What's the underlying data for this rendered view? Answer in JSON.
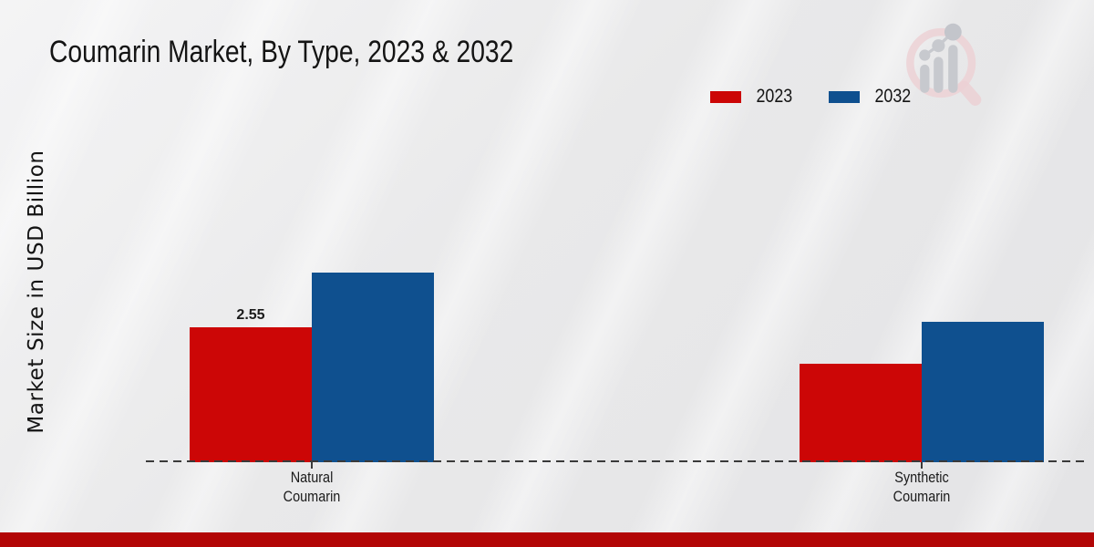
{
  "page": {
    "background_color": "#e8e8ea",
    "bottom_band_color": "#b20606"
  },
  "header": {
    "title": "Coumarin Market, By Type, 2023 & 2032"
  },
  "logo": {
    "name": "market-research-magnifier-watermark",
    "ring_color": "#ecd1d5",
    "glyph_color": "#c7c9ce"
  },
  "chart_data": {
    "type": "bar",
    "title": "Coumarin Market, By Type, 2023 & 2032",
    "xlabel": "",
    "ylabel": "Market Size in USD Billion",
    "categories": [
      "Natural Coumarin",
      "Synthetic Coumarin"
    ],
    "series": [
      {
        "name": "2023",
        "color": "#cc0606",
        "values": [
          2.55,
          1.86
        ]
      },
      {
        "name": "2032",
        "color": "#0f508f",
        "values": [
          3.58,
          2.65
        ]
      }
    ],
    "point_labels": [
      {
        "series": "2023",
        "category": "Natural Coumarin",
        "text": "2.55"
      }
    ],
    "ylim": [
      0,
      3.9
    ],
    "grid": false,
    "legend_position": "top-right",
    "baseline_style": "dashed",
    "axis_ticks_visible": false
  }
}
